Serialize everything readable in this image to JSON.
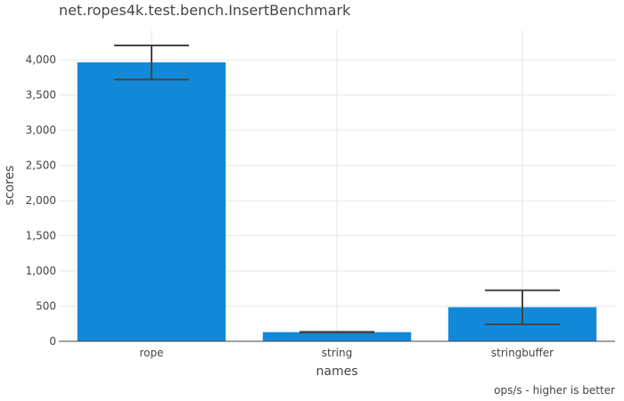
{
  "chart_data": {
    "type": "bar",
    "title": "net.ropes4k.test.bench.InsertBenchmark",
    "xlabel": "names",
    "ylabel": "scores",
    "categories": [
      "rope",
      "string",
      "stringbuffer"
    ],
    "values": [
      3965,
      130,
      485
    ],
    "error": [
      {
        "low": 3720,
        "high": 4205
      },
      {
        "low": 125,
        "high": 135
      },
      {
        "low": 240,
        "high": 725
      }
    ],
    "ylim": [
      0,
      4420
    ],
    "y_ticks": [
      0,
      500,
      1000,
      1500,
      2000,
      2500,
      3000,
      3500,
      4000
    ],
    "y_tick_labels": [
      "0",
      "500",
      "1,000",
      "1,500",
      "2,000",
      "2,500",
      "3,000",
      "3,500",
      "4,000"
    ],
    "annotation": "ops/s - higher is better",
    "grid": true,
    "bar_color": "#1289d8",
    "error_color": "#444444",
    "grid_color": "#e6e6e6"
  }
}
